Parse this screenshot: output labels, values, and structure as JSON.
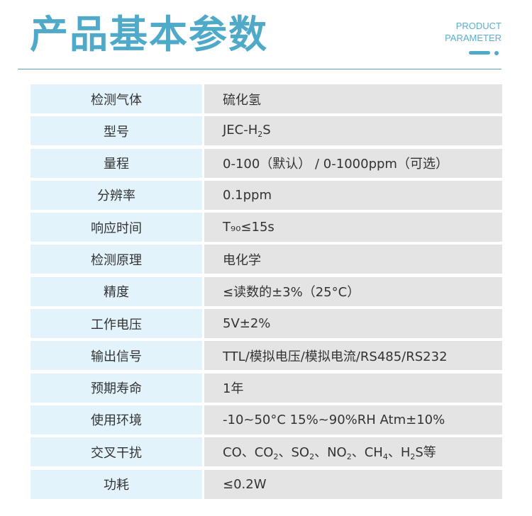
{
  "header": {
    "title": "产品基本参数",
    "subtitle_line1": "PRODUCT",
    "subtitle_line2": "PARAMETER",
    "accent": "#4fa9c8"
  },
  "rows": [
    {
      "label": "检测气体",
      "value": [
        {
          "t": "硫化氢"
        }
      ]
    },
    {
      "label": "型号",
      "value": [
        {
          "t": "JEC-H"
        },
        {
          "sub": "2"
        },
        {
          "t": "S"
        }
      ]
    },
    {
      "label": "量程",
      "value": [
        {
          "t": "0-100（默认） / 0-1000ppm（可选）"
        }
      ]
    },
    {
      "label": "分辨率",
      "value": [
        {
          "t": "0.1ppm"
        }
      ]
    },
    {
      "label": "响应时间",
      "value": [
        {
          "t": "T₉₀≤15s"
        }
      ]
    },
    {
      "label": "检测原理",
      "value": [
        {
          "t": "电化学"
        }
      ]
    },
    {
      "label": "精度",
      "value": [
        {
          "t": "≤读数的±3%（25°C）"
        }
      ]
    },
    {
      "label": "工作电压",
      "value": [
        {
          "t": "5V±2%"
        }
      ]
    },
    {
      "label": "输出信号",
      "value": [
        {
          "t": "TTL/模拟电压/模拟电流/RS485/RS232"
        }
      ]
    },
    {
      "label": "预期寿命",
      "value": [
        {
          "t": "1年"
        }
      ]
    },
    {
      "label": "使用环境",
      "value": [
        {
          "t": "-10~50°C 15%~90%RH  Atm±10%"
        }
      ]
    },
    {
      "label": "交叉干扰",
      "value": [
        {
          "t": "CO、CO"
        },
        {
          "sub": "2"
        },
        {
          "t": "、SO"
        },
        {
          "sub": "2"
        },
        {
          "t": "、NO"
        },
        {
          "sub": "2"
        },
        {
          "t": "、CH"
        },
        {
          "sub": "4"
        },
        {
          "t": "、H"
        },
        {
          "sub": "2"
        },
        {
          "t": "S等"
        }
      ]
    },
    {
      "label": "功耗",
      "value": [
        {
          "t": "≤0.2W"
        }
      ]
    }
  ]
}
